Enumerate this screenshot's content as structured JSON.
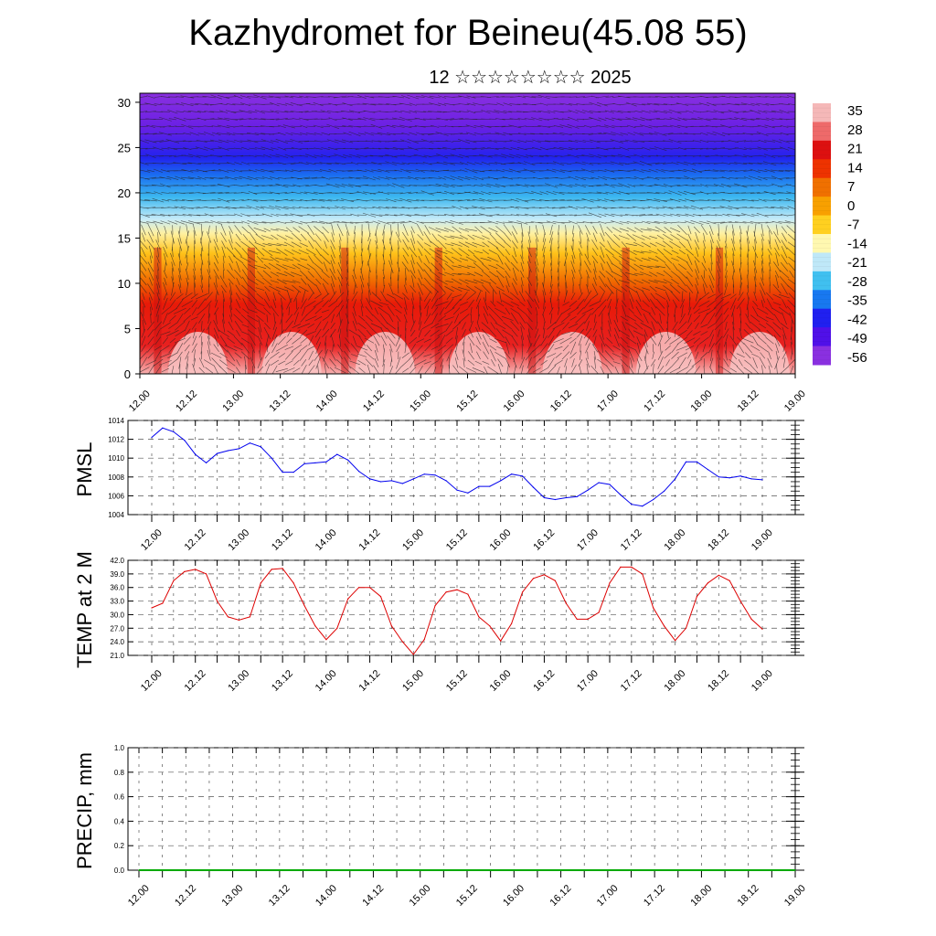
{
  "title": "Kazhydromet for Beineu(45.08 55)",
  "subtitle": "12 ☆☆☆☆☆☆☆☆ 2025",
  "colors": {
    "pmsl_line": "#0000ee",
    "temp_line": "#dd0000",
    "precip_line": "#00aa00"
  },
  "chart_data": [
    {
      "type": "heatmap",
      "x_ticks": [
        "12.00",
        "12.12",
        "13.00",
        "13.12",
        "14.00",
        "14.12",
        "15.00",
        "15.12",
        "16.00",
        "16.12",
        "17.00",
        "17.12",
        "18.00",
        "18.12",
        "19.00"
      ],
      "y_ticks": [
        0,
        5,
        10,
        15,
        20,
        25,
        30
      ],
      "ylim": [
        0,
        31
      ],
      "colorbar_labels": [
        "35",
        "28",
        "21",
        "14",
        "7",
        "0",
        "-7",
        "-14",
        "-21",
        "-28",
        "-35",
        "-42",
        "-49",
        "-56"
      ],
      "colorbar_colors": [
        "#f5b8b8",
        "#ee6a6a",
        "#dd1010",
        "#ee3300",
        "#f07000",
        "#f8a000",
        "#ffd020",
        "#fff8b0",
        "#bfe8f8",
        "#40c0f0",
        "#1878f0",
        "#2020f0",
        "#5010e8",
        "#8a30e0"
      ],
      "grid": false
    },
    {
      "type": "line",
      "ylabel": "PMSL",
      "x_ticks": [
        "12.00",
        "12.12",
        "13.00",
        "13.12",
        "14.00",
        "14.12",
        "15.00",
        "15.12",
        "16.00",
        "16.12",
        "17.00",
        "17.12",
        "18.00",
        "18.12",
        "19.00"
      ],
      "y_ticks": [
        "1004",
        "1006",
        "1008",
        "1010",
        "1012",
        "1014"
      ],
      "ylim": [
        1004,
        1014
      ],
      "grid": true,
      "series": [
        {
          "values": [
            1012.2,
            1013.2,
            1012.8,
            1011.9,
            1010.4,
            1009.5,
            1010.5,
            1010.8,
            1011.0,
            1011.6,
            1011.2,
            1010.0,
            1008.5,
            1008.5,
            1009.4,
            1009.5,
            1009.6,
            1010.4,
            1009.8,
            1008.6,
            1007.8,
            1007.5,
            1007.6,
            1007.3,
            1007.8,
            1008.3,
            1008.2,
            1007.6,
            1006.6,
            1006.3,
            1007.0,
            1007.0,
            1007.6,
            1008.3,
            1008.1,
            1006.9,
            1005.8,
            1005.6,
            1005.8,
            1005.9,
            1006.6,
            1007.4,
            1007.2,
            1006.1,
            1005.1,
            1004.9,
            1005.6,
            1006.5,
            1007.8,
            1009.6,
            1009.6,
            1008.8,
            1008.0,
            1007.9,
            1008.1,
            1007.8,
            1007.7
          ]
        }
      ]
    },
    {
      "type": "line",
      "ylabel": "TEMP at 2 M",
      "x_ticks": [
        "12.00",
        "12.12",
        "13.00",
        "13.12",
        "14.00",
        "14.12",
        "15.00",
        "15.12",
        "16.00",
        "16.12",
        "17.00",
        "17.12",
        "18.00",
        "18.12",
        "19.00"
      ],
      "y_ticks": [
        "21.0",
        "24.0",
        "27.0",
        "30.0",
        "33.0",
        "36.0",
        "39.0",
        "42.0"
      ],
      "ylim": [
        21,
        42
      ],
      "grid": true,
      "series": [
        {
          "values": [
            31.5,
            32.5,
            37.5,
            39.5,
            40.0,
            39.0,
            33.0,
            29.5,
            28.8,
            29.5,
            37.0,
            40.0,
            40.2,
            37.0,
            32.0,
            27.5,
            24.5,
            27.0,
            33.5,
            36.0,
            36.0,
            34.0,
            27.5,
            24.0,
            21.2,
            24.5,
            32.0,
            35.0,
            35.5,
            34.5,
            29.5,
            27.5,
            24.2,
            28.0,
            35.0,
            38.0,
            38.8,
            37.5,
            32.5,
            29.0,
            29.0,
            30.5,
            37.0,
            40.5,
            40.5,
            39.0,
            31.5,
            27.5,
            24.3,
            27.0,
            34.0,
            37.0,
            38.7,
            37.5,
            33.0,
            29.0,
            26.8
          ]
        }
      ]
    },
    {
      "type": "line",
      "ylabel": "PRECIP, mm",
      "x_ticks": [
        "12.00",
        "12.12",
        "13.00",
        "13.12",
        "14.00",
        "14.12",
        "15.00",
        "15.12",
        "16.00",
        "16.12",
        "17.00",
        "17.12",
        "18.00",
        "18.12",
        "19.00"
      ],
      "y_ticks": [
        "0.0",
        "0.2",
        "0.4",
        "0.6",
        "0.8",
        "1.0"
      ],
      "ylim": [
        0,
        1
      ],
      "grid": true,
      "series": [
        {
          "values": [
            0,
            0,
            0,
            0,
            0,
            0,
            0,
            0,
            0,
            0,
            0,
            0,
            0,
            0,
            0,
            0,
            0,
            0,
            0,
            0,
            0,
            0,
            0,
            0,
            0,
            0,
            0,
            0,
            0,
            0,
            0,
            0,
            0,
            0,
            0,
            0,
            0,
            0,
            0,
            0,
            0,
            0,
            0,
            0,
            0,
            0,
            0,
            0,
            0,
            0,
            0,
            0,
            0,
            0,
            0,
            0,
            0
          ]
        }
      ]
    }
  ]
}
